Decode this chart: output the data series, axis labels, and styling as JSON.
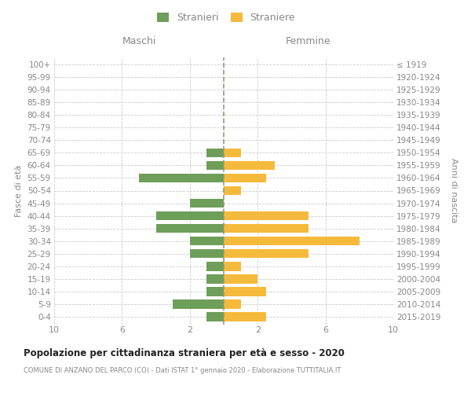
{
  "age_groups": [
    "100+",
    "95-99",
    "90-94",
    "85-89",
    "80-84",
    "75-79",
    "70-74",
    "65-69",
    "60-64",
    "55-59",
    "50-54",
    "45-49",
    "40-44",
    "35-39",
    "30-34",
    "25-29",
    "20-24",
    "15-19",
    "10-14",
    "5-9",
    "0-4"
  ],
  "birth_years": [
    "≤ 1919",
    "1920-1924",
    "1925-1929",
    "1930-1934",
    "1935-1939",
    "1940-1944",
    "1945-1949",
    "1950-1954",
    "1955-1959",
    "1960-1964",
    "1965-1969",
    "1970-1974",
    "1975-1979",
    "1980-1984",
    "1985-1989",
    "1990-1994",
    "1995-1999",
    "2000-2004",
    "2005-2009",
    "2010-2014",
    "2015-2019"
  ],
  "males": [
    0,
    0,
    0,
    0,
    0,
    0,
    0,
    1,
    1,
    5,
    0,
    2,
    4,
    4,
    2,
    2,
    1,
    1,
    1,
    3,
    1
  ],
  "females": [
    0,
    0,
    0,
    0,
    0,
    0,
    0,
    1,
    3,
    2.5,
    1,
    0,
    5,
    5,
    8,
    5,
    1,
    2,
    2.5,
    1,
    2.5
  ],
  "male_color": "#6d9e5a",
  "female_color": "#f5ba3c",
  "xlim": 10,
  "title": "Popolazione per cittadinanza straniera per età e sesso - 2020",
  "subtitle": "COMUNE DI ANZANO DEL PARCO (CO) - Dati ISTAT 1° gennaio 2020 - Elaborazione TUTTITALIA.IT",
  "ylabel_left": "Fasce di età",
  "ylabel_right": "Anni di nascita",
  "xlabel_left": "Maschi",
  "xlabel_right": "Femmine",
  "legend_male": "Stranieri",
  "legend_female": "Straniere",
  "bg_color": "#ffffff",
  "grid_color": "#cccccc",
  "label_color": "#888888",
  "dashed_line_color": "#999977",
  "title_color": "#222222",
  "subtitle_color": "#888888"
}
